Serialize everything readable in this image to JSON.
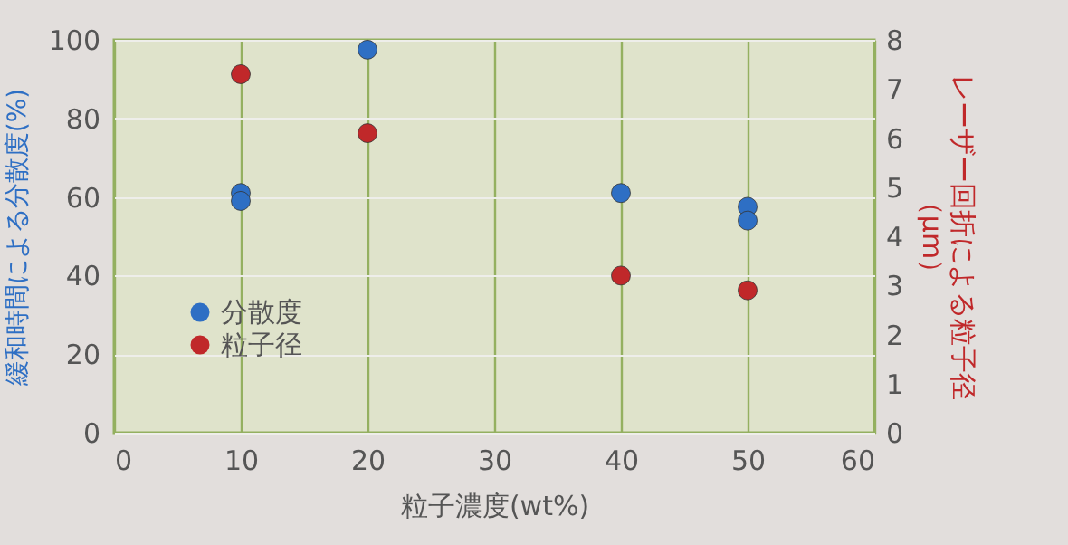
{
  "chart_data": {
    "type": "scatter",
    "xlabel": "粒子濃度(wt%)",
    "ylabel": "緩和時間による分散度(%)",
    "y2label": "レーザー回折による粒子径（µm）",
    "xlim": [
      0,
      60
    ],
    "xticks": [
      0,
      10,
      20,
      30,
      40,
      50,
      60
    ],
    "ylim": [
      0,
      100
    ],
    "yticks": [
      0,
      20,
      40,
      60,
      80,
      100
    ],
    "y2lim": [
      0,
      8
    ],
    "y2ticks": [
      0,
      1,
      2,
      3,
      4,
      5,
      6,
      7,
      8
    ],
    "grid": true,
    "legend": "bottom left",
    "marker": "circle",
    "series": [
      {
        "name": "分散度",
        "color": "#2e6fc4",
        "x": [
          10,
          10,
          20,
          40,
          50,
          50
        ],
        "values": [
          61,
          59,
          97.5,
          61,
          57.5,
          54
        ]
      },
      {
        "name": "粒子径",
        "color": "#c0282a",
        "axis": "y2",
        "x": [
          10,
          20,
          40,
          50
        ],
        "values": [
          7.3,
          6.1,
          3.2,
          2.9
        ]
      }
    ]
  }
}
